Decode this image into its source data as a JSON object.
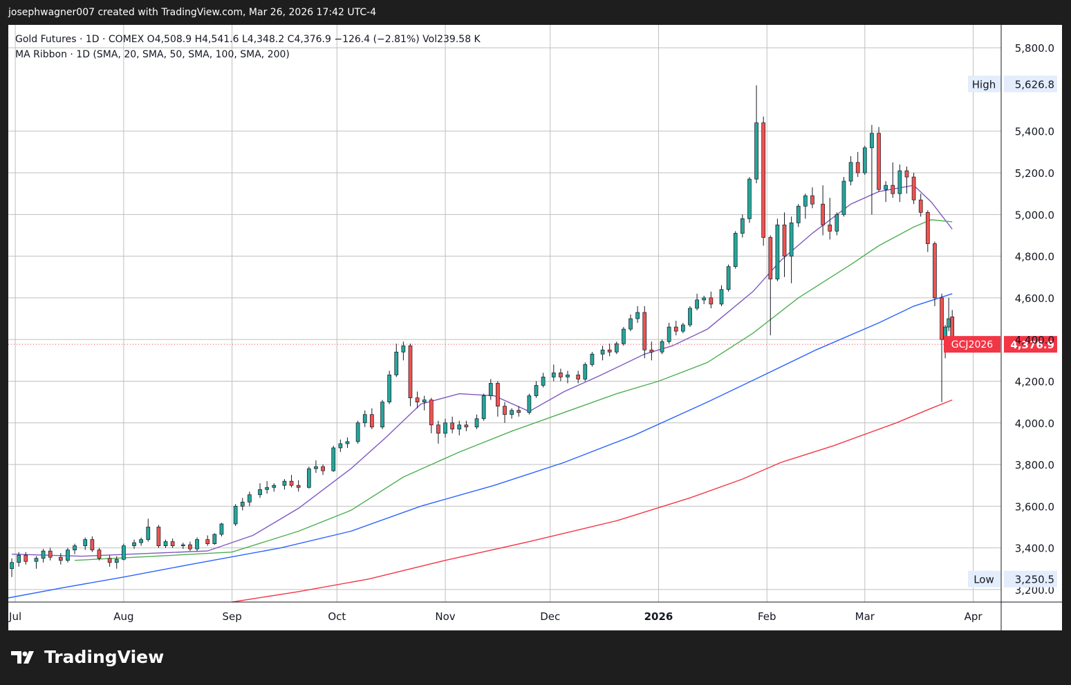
{
  "header": {
    "credit": "josephwagner007 created with TradingView.com, Mar 26, 2026 17:42 UTC-4"
  },
  "legend": {
    "line1": "Gold Futures · 1D · COMEX  O4,508.9  H4,541.6  L4,348.2  C4,376.9  −126.4 (−2.81%)  Vol239.58 K",
    "line2": "MA Ribbon · 1D (SMA, 20, SMA, 50, SMA, 100, SMA, 200)"
  },
  "footer": {
    "brand": "TradingView"
  },
  "colors": {
    "up": "#26a69a",
    "down": "#ef5350",
    "sma20": "#7e57c2",
    "sma50": "#4caf50",
    "sma100": "#2962ff",
    "sma200": "#f23645",
    "grid": "#bfbfbf",
    "badge": "#f23645",
    "hilo": "#e3edfb"
  },
  "chart_data": {
    "type": "candlestick",
    "symbol": "GCJ2026",
    "last_price": 4376.9,
    "last_price_label": "4,376.9",
    "high_label": "High",
    "high_value": 5626.8,
    "high_value_label": "5,626.8",
    "low_label": "Low",
    "low_value": 3250.5,
    "low_value_label": "3,250.5",
    "ylim": [
      3140,
      5910
    ],
    "yticks": [
      3200,
      3400,
      3600,
      3800,
      4000,
      4200,
      4400,
      4600,
      4800,
      5000,
      5200,
      5400,
      5800
    ],
    "ytick_labels": [
      "3,200.0",
      "3,400.0",
      "3,600.0",
      "3,800.0",
      "4,000.0",
      "4,200.0",
      "4,400.0",
      "4,600.0",
      "4,800.0",
      "5,000.0",
      "5,200.0",
      "5,400.0",
      "5,800.0"
    ],
    "x_start": "2025-06-29",
    "x_end": "2026-04-09",
    "xticks": [
      {
        "date": "2025-07-01",
        "label": "Jul",
        "bold": false
      },
      {
        "date": "2025-08-01",
        "label": "Aug",
        "bold": false
      },
      {
        "date": "2025-09-01",
        "label": "Sep",
        "bold": false
      },
      {
        "date": "2025-10-01",
        "label": "Oct",
        "bold": false
      },
      {
        "date": "2025-11-01",
        "label": "Nov",
        "bold": false
      },
      {
        "date": "2025-12-01",
        "label": "Dec",
        "bold": false
      },
      {
        "date": "2026-01-01",
        "label": "2026",
        "bold": true
      },
      {
        "date": "2026-02-01",
        "label": "Feb",
        "bold": false
      },
      {
        "date": "2026-03-01",
        "label": "Mar",
        "bold": false
      },
      {
        "date": "2026-04-01",
        "label": "Apr",
        "bold": false
      }
    ],
    "ma_series": [
      {
        "name": "SMA 20",
        "color": "#7e57c2",
        "points": [
          [
            "2025-06-30",
            3370
          ],
          [
            "2025-07-20",
            3360
          ],
          [
            "2025-08-10",
            3375
          ],
          [
            "2025-08-25",
            3385
          ],
          [
            "2025-09-07",
            3460
          ],
          [
            "2025-09-20",
            3590
          ],
          [
            "2025-10-05",
            3780
          ],
          [
            "2025-10-15",
            3930
          ],
          [
            "2025-10-25",
            4090
          ],
          [
            "2025-11-05",
            4140
          ],
          [
            "2025-11-15",
            4130
          ],
          [
            "2025-11-25",
            4055
          ],
          [
            "2025-12-05",
            4150
          ],
          [
            "2025-12-15",
            4225
          ],
          [
            "2025-12-28",
            4330
          ],
          [
            "2026-01-05",
            4370
          ],
          [
            "2026-01-15",
            4450
          ],
          [
            "2026-01-28",
            4630
          ],
          [
            "2026-02-05",
            4780
          ],
          [
            "2026-02-14",
            4910
          ],
          [
            "2026-02-25",
            5050
          ],
          [
            "2026-03-05",
            5110
          ],
          [
            "2026-03-15",
            5140
          ],
          [
            "2026-03-20",
            5060
          ],
          [
            "2026-03-26",
            4930
          ]
        ]
      },
      {
        "name": "SMA 50",
        "color": "#4caf50",
        "points": [
          [
            "2025-07-18",
            3340
          ],
          [
            "2025-08-10",
            3360
          ],
          [
            "2025-09-01",
            3380
          ],
          [
            "2025-09-20",
            3480
          ],
          [
            "2025-10-05",
            3580
          ],
          [
            "2025-10-20",
            3740
          ],
          [
            "2025-11-05",
            3860
          ],
          [
            "2025-11-20",
            3960
          ],
          [
            "2025-12-05",
            4050
          ],
          [
            "2025-12-20",
            4140
          ],
          [
            "2026-01-01",
            4200
          ],
          [
            "2026-01-15",
            4290
          ],
          [
            "2026-01-28",
            4430
          ],
          [
            "2026-02-10",
            4600
          ],
          [
            "2026-02-25",
            4760
          ],
          [
            "2026-03-05",
            4850
          ],
          [
            "2026-03-15",
            4940
          ],
          [
            "2026-03-20",
            4975
          ],
          [
            "2026-03-26",
            4965
          ]
        ]
      },
      {
        "name": "SMA 100",
        "color": "#2962ff",
        "points": [
          [
            "2025-06-29",
            3160
          ],
          [
            "2025-07-15",
            3210
          ],
          [
            "2025-08-01",
            3260
          ],
          [
            "2025-08-20",
            3320
          ],
          [
            "2025-09-15",
            3400
          ],
          [
            "2025-10-05",
            3480
          ],
          [
            "2025-10-25",
            3600
          ],
          [
            "2025-11-15",
            3700
          ],
          [
            "2025-12-05",
            3810
          ],
          [
            "2025-12-25",
            3940
          ],
          [
            "2026-01-15",
            4100
          ],
          [
            "2026-01-30",
            4220
          ],
          [
            "2026-02-15",
            4350
          ],
          [
            "2026-03-05",
            4480
          ],
          [
            "2026-03-15",
            4560
          ],
          [
            "2026-03-26",
            4620
          ]
        ]
      },
      {
        "name": "SMA 200",
        "color": "#f23645",
        "points": [
          [
            "2025-09-01",
            3140
          ],
          [
            "2025-09-20",
            3190
          ],
          [
            "2025-10-10",
            3250
          ],
          [
            "2025-11-01",
            3340
          ],
          [
            "2025-11-25",
            3430
          ],
          [
            "2025-12-20",
            3530
          ],
          [
            "2026-01-10",
            3640
          ],
          [
            "2026-01-25",
            3730
          ],
          [
            "2026-02-05",
            3810
          ],
          [
            "2026-02-20",
            3890
          ],
          [
            "2026-03-10",
            4000
          ],
          [
            "2026-03-20",
            4070
          ],
          [
            "2026-03-26",
            4110
          ]
        ]
      }
    ],
    "candles": [
      [
        "2025-06-30",
        3300,
        3350,
        3260,
        3330
      ],
      [
        "2025-07-02",
        3330,
        3380,
        3310,
        3365
      ],
      [
        "2025-07-04",
        3365,
        3380,
        3320,
        3335
      ],
      [
        "2025-07-07",
        3335,
        3360,
        3300,
        3350
      ],
      [
        "2025-07-09",
        3350,
        3395,
        3330,
        3385
      ],
      [
        "2025-07-11",
        3385,
        3400,
        3340,
        3355
      ],
      [
        "2025-07-14",
        3355,
        3375,
        3320,
        3340
      ],
      [
        "2025-07-16",
        3340,
        3400,
        3330,
        3390
      ],
      [
        "2025-07-18",
        3390,
        3420,
        3370,
        3410
      ],
      [
        "2025-07-21",
        3410,
        3450,
        3390,
        3440
      ],
      [
        "2025-07-23",
        3440,
        3455,
        3380,
        3390
      ],
      [
        "2025-07-25",
        3390,
        3400,
        3340,
        3350
      ],
      [
        "2025-07-28",
        3350,
        3365,
        3310,
        3330
      ],
      [
        "2025-07-30",
        3330,
        3360,
        3300,
        3345
      ],
      [
        "2025-08-01",
        3345,
        3420,
        3340,
        3410
      ],
      [
        "2025-08-04",
        3410,
        3440,
        3395,
        3425
      ],
      [
        "2025-08-06",
        3425,
        3450,
        3410,
        3440
      ],
      [
        "2025-08-08",
        3440,
        3540,
        3430,
        3500
      ],
      [
        "2025-08-11",
        3500,
        3510,
        3400,
        3410
      ],
      [
        "2025-08-13",
        3410,
        3440,
        3400,
        3430
      ],
      [
        "2025-08-15",
        3430,
        3445,
        3400,
        3410
      ],
      [
        "2025-08-18",
        3410,
        3425,
        3395,
        3415
      ],
      [
        "2025-08-20",
        3415,
        3430,
        3385,
        3395
      ],
      [
        "2025-08-22",
        3395,
        3450,
        3385,
        3440
      ],
      [
        "2025-08-25",
        3440,
        3460,
        3410,
        3420
      ],
      [
        "2025-08-27",
        3420,
        3470,
        3415,
        3465
      ],
      [
        "2025-08-29",
        3465,
        3520,
        3455,
        3515
      ],
      [
        "2025-09-02",
        3515,
        3610,
        3505,
        3600
      ],
      [
        "2025-09-04",
        3600,
        3640,
        3580,
        3620
      ],
      [
        "2025-09-06",
        3620,
        3670,
        3600,
        3655
      ],
      [
        "2025-09-09",
        3655,
        3710,
        3640,
        3680
      ],
      [
        "2025-09-11",
        3680,
        3720,
        3660,
        3690
      ],
      [
        "2025-09-13",
        3690,
        3710,
        3670,
        3700
      ],
      [
        "2025-09-16",
        3700,
        3730,
        3680,
        3720
      ],
      [
        "2025-09-18",
        3720,
        3750,
        3690,
        3700
      ],
      [
        "2025-09-20",
        3700,
        3725,
        3670,
        3690
      ],
      [
        "2025-09-23",
        3690,
        3790,
        3685,
        3780
      ],
      [
        "2025-09-25",
        3780,
        3820,
        3760,
        3790
      ],
      [
        "2025-09-27",
        3790,
        3800,
        3750,
        3770
      ],
      [
        "2025-09-30",
        3770,
        3890,
        3765,
        3880
      ],
      [
        "2025-10-02",
        3880,
        3920,
        3860,
        3900
      ],
      [
        "2025-10-04",
        3900,
        3930,
        3880,
        3910
      ],
      [
        "2025-10-07",
        3910,
        4010,
        3900,
        4000
      ],
      [
        "2025-10-09",
        4000,
        4060,
        3980,
        4040
      ],
      [
        "2025-10-11",
        4040,
        4070,
        3970,
        3980
      ],
      [
        "2025-10-14",
        3980,
        4110,
        3970,
        4100
      ],
      [
        "2025-10-16",
        4100,
        4250,
        4090,
        4230
      ],
      [
        "2025-10-18",
        4230,
        4380,
        4220,
        4340
      ],
      [
        "2025-10-20",
        4340,
        4390,
        4300,
        4370
      ],
      [
        "2025-10-22",
        4370,
        4380,
        4080,
        4120
      ],
      [
        "2025-10-24",
        4120,
        4150,
        4070,
        4100
      ],
      [
        "2025-10-26",
        4100,
        4130,
        4060,
        4110
      ],
      [
        "2025-10-28",
        4110,
        4120,
        3950,
        3990
      ],
      [
        "2025-10-30",
        3990,
        4010,
        3900,
        3950
      ],
      [
        "2025-11-01",
        3950,
        4020,
        3930,
        4000
      ],
      [
        "2025-11-03",
        4000,
        4030,
        3950,
        3970
      ],
      [
        "2025-11-05",
        3970,
        4010,
        3940,
        3990
      ],
      [
        "2025-11-07",
        3990,
        4010,
        3960,
        3980
      ],
      [
        "2025-11-10",
        3980,
        4040,
        3970,
        4020
      ],
      [
        "2025-11-12",
        4020,
        4140,
        4010,
        4130
      ],
      [
        "2025-11-14",
        4130,
        4210,
        4110,
        4190
      ],
      [
        "2025-11-16",
        4190,
        4200,
        4030,
        4080
      ],
      [
        "2025-11-18",
        4080,
        4100,
        4000,
        4040
      ],
      [
        "2025-11-20",
        4040,
        4070,
        4020,
        4060
      ],
      [
        "2025-11-22",
        4060,
        4080,
        4030,
        4050
      ],
      [
        "2025-11-25",
        4050,
        4140,
        4040,
        4130
      ],
      [
        "2025-11-27",
        4130,
        4200,
        4120,
        4180
      ],
      [
        "2025-11-29",
        4180,
        4240,
        4170,
        4220
      ],
      [
        "2025-12-02",
        4220,
        4280,
        4200,
        4240
      ],
      [
        "2025-12-04",
        4240,
        4260,
        4200,
        4220
      ],
      [
        "2025-12-06",
        4220,
        4250,
        4190,
        4230
      ],
      [
        "2025-12-09",
        4230,
        4250,
        4190,
        4210
      ],
      [
        "2025-12-11",
        4210,
        4290,
        4200,
        4280
      ],
      [
        "2025-12-13",
        4280,
        4340,
        4270,
        4330
      ],
      [
        "2025-12-16",
        4330,
        4370,
        4300,
        4350
      ],
      [
        "2025-12-18",
        4350,
        4380,
        4320,
        4340
      ],
      [
        "2025-12-20",
        4340,
        4390,
        4330,
        4380
      ],
      [
        "2025-12-22",
        4380,
        4460,
        4370,
        4450
      ],
      [
        "2025-12-24",
        4450,
        4520,
        4440,
        4500
      ],
      [
        "2025-12-26",
        4500,
        4560,
        4480,
        4530
      ],
      [
        "2025-12-28",
        4530,
        4560,
        4310,
        4350
      ],
      [
        "2025-12-30",
        4350,
        4390,
        4300,
        4340
      ],
      [
        "2026-01-02",
        4340,
        4400,
        4330,
        4390
      ],
      [
        "2026-01-04",
        4390,
        4480,
        4380,
        4460
      ],
      [
        "2026-01-06",
        4460,
        4490,
        4420,
        4440
      ],
      [
        "2026-01-08",
        4440,
        4480,
        4430,
        4470
      ],
      [
        "2026-01-10",
        4470,
        4560,
        4460,
        4550
      ],
      [
        "2026-01-12",
        4550,
        4620,
        4540,
        4590
      ],
      [
        "2026-01-14",
        4590,
        4610,
        4570,
        4600
      ],
      [
        "2026-01-16",
        4600,
        4630,
        4550,
        4570
      ],
      [
        "2026-01-19",
        4570,
        4660,
        4560,
        4640
      ],
      [
        "2026-01-21",
        4640,
        4760,
        4630,
        4750
      ],
      [
        "2026-01-23",
        4750,
        4920,
        4740,
        4910
      ],
      [
        "2026-01-25",
        4910,
        5000,
        4890,
        4980
      ],
      [
        "2026-01-27",
        4980,
        5180,
        4960,
        5170
      ],
      [
        "2026-01-29",
        5170,
        5620,
        5150,
        5440
      ],
      [
        "2026-01-31",
        5440,
        5470,
        4850,
        4890
      ],
      [
        "2026-02-02",
        4890,
        4900,
        4420,
        4690
      ],
      [
        "2026-02-04",
        4690,
        4980,
        4680,
        4950
      ],
      [
        "2026-02-06",
        4950,
        5010,
        4700,
        4800
      ],
      [
        "2026-02-08",
        4800,
        4990,
        4670,
        4960
      ],
      [
        "2026-02-10",
        4960,
        5050,
        4940,
        5040
      ],
      [
        "2026-02-12",
        5040,
        5100,
        4980,
        5090
      ],
      [
        "2026-02-14",
        5090,
        5130,
        5030,
        5050
      ],
      [
        "2026-02-17",
        5050,
        5140,
        4900,
        4950
      ],
      [
        "2026-02-19",
        4950,
        5080,
        4880,
        4920
      ],
      [
        "2026-02-21",
        4920,
        5010,
        4900,
        5000
      ],
      [
        "2026-02-23",
        5000,
        5180,
        4990,
        5160
      ],
      [
        "2026-02-25",
        5160,
        5280,
        5140,
        5250
      ],
      [
        "2026-02-27",
        5250,
        5300,
        5180,
        5200
      ],
      [
        "2026-03-01",
        5200,
        5330,
        5190,
        5320
      ],
      [
        "2026-03-03",
        5320,
        5430,
        5000,
        5390
      ],
      [
        "2026-03-05",
        5390,
        5420,
        5110,
        5120
      ],
      [
        "2026-03-07",
        5120,
        5160,
        5060,
        5140
      ],
      [
        "2026-03-09",
        5140,
        5250,
        5080,
        5100
      ],
      [
        "2026-03-11",
        5100,
        5240,
        5060,
        5210
      ],
      [
        "2026-03-13",
        5210,
        5230,
        5100,
        5180
      ],
      [
        "2026-03-15",
        5180,
        5200,
        5050,
        5070
      ],
      [
        "2026-03-17",
        5070,
        5100,
        4990,
        5010
      ],
      [
        "2026-03-19",
        5010,
        5020,
        4820,
        4860
      ],
      [
        "2026-03-21",
        4860,
        4870,
        4560,
        4600
      ],
      [
        "2026-03-23",
        4600,
        4620,
        4100,
        4400
      ],
      [
        "2026-03-24",
        4400,
        4470,
        4310,
        4460
      ],
      [
        "2026-03-25",
        4460,
        4600,
        4440,
        4500
      ],
      [
        "2026-03-26",
        4508.9,
        4541.6,
        4348.2,
        4376.9
      ]
    ]
  }
}
